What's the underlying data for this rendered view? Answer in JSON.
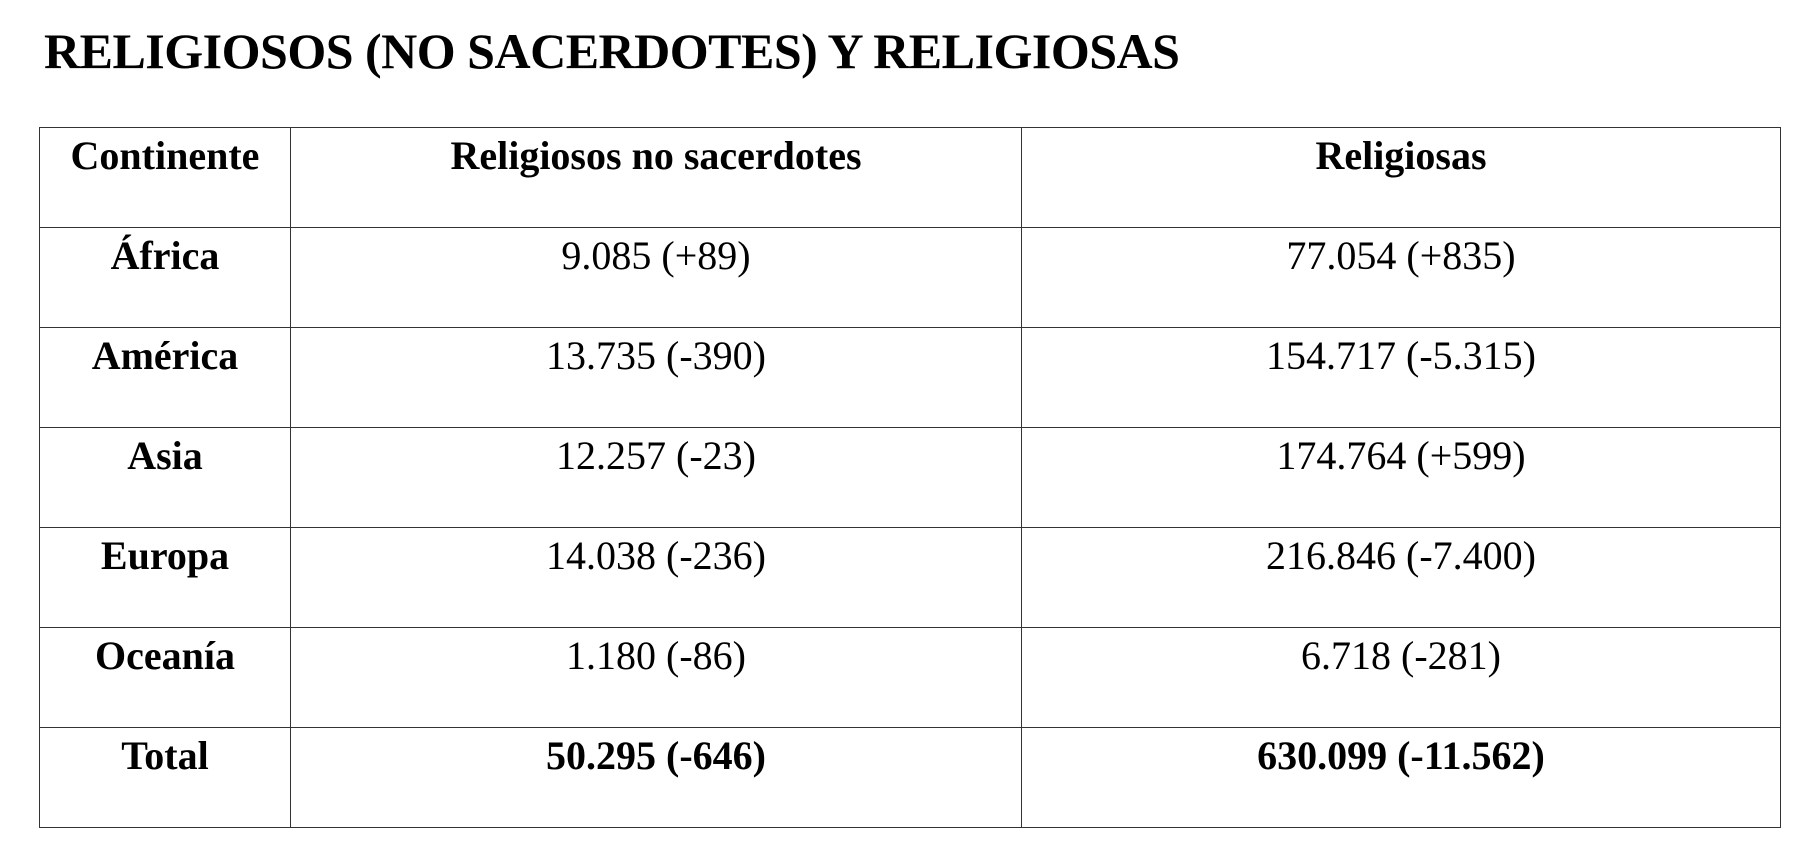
{
  "title": "RELIGIOSOS (NO SACERDOTES) Y RELIGIOSAS",
  "table": {
    "header": [
      "Continente",
      "Religiosos no sacerdotes",
      "Religiosas"
    ],
    "rows": [
      [
        "África",
        "9.085 (+89)",
        "77.054 (+835)"
      ],
      [
        "América",
        "13.735 (-390)",
        "154.717 (-5.315)"
      ],
      [
        "Asia",
        "12.257 (-23)",
        "174.764 (+599)"
      ],
      [
        "Europa",
        "14.038 (-236)",
        "216.846 (-7.400)"
      ],
      [
        "Oceanía",
        "1.180 (-86)",
        "6.718 (-281)"
      ],
      [
        "Total",
        "50.295 (-646)",
        "630.099 (-11.562)"
      ]
    ]
  }
}
